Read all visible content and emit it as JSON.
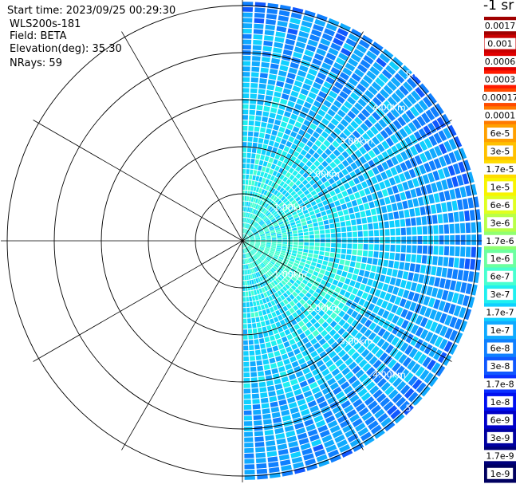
{
  "header": {
    "start_time": "Start time: 2023/09/25 00:29:30",
    "instrument": "WLS200s-181",
    "field": "Field: BETA",
    "elevation": "Elevation(deg): 35.30",
    "nrays": "NRays: 59"
  },
  "colorbar": {
    "unit_label": "-1 sr",
    "ticks": [
      "0.0017",
      "0.001",
      "0.0006",
      "0.0003",
      "0.00017",
      "0.0001",
      "6e-5",
      "3e-5",
      "1.7e-5",
      "1e-5",
      "6e-6",
      "3e-6",
      "1.7e-6",
      "1e-6",
      "6e-7",
      "3e-7",
      "1.7e-7",
      "1e-7",
      "6e-8",
      "3e-8",
      "1.7e-8",
      "1e-8",
      "6e-9",
      "3e-9",
      "1.7e-9",
      "1e-9"
    ],
    "colors": [
      "#a00000",
      "#c80000",
      "#e00000",
      "#ff1a00",
      "#ff4a00",
      "#ff7a00",
      "#ffa000",
      "#ffc000",
      "#ffdc00",
      "#f8f400",
      "#e0ff20",
      "#b8ff48",
      "#90ff70",
      "#6cffa0",
      "#48ffd0",
      "#20f0f0",
      "#10d0ff",
      "#10aaff",
      "#1080ff",
      "#1058ff",
      "#0a30ff",
      "#0010f0",
      "#0000c8",
      "#0000a0",
      "#00007a",
      "#000060"
    ]
  },
  "chart_data": {
    "type": "heatmap",
    "projection": "polar sector scan (PPI)",
    "field": "BETA",
    "elevation_deg": 35.3,
    "n_rays": 59,
    "azimuth_range_deg": [
      0,
      180
    ],
    "range_rings_km": [
      1.0,
      2.0,
      3.0,
      4.0,
      5.0
    ],
    "range_ring_labels": [
      "1.00km",
      "2.00km",
      "3.00km",
      "4.00km",
      "5.00km"
    ],
    "max_range_km": 5.1,
    "typical_beta_near_sr": "1e-7",
    "typical_beta_far_sr": "1.7e-8",
    "colorscale": "log"
  }
}
